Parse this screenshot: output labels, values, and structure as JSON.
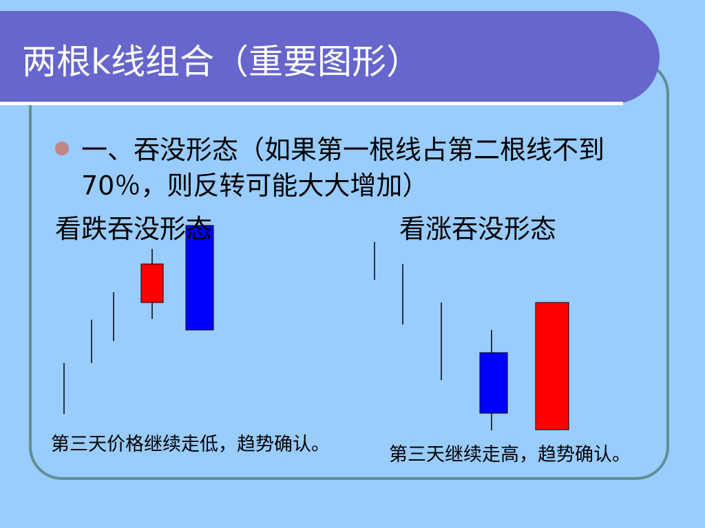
{
  "slide": {
    "title": "两根k线组合（重要图形）",
    "bullet": "一、吞没形态（如果第一根线占第二根线不到70％，则反转可能大大增加）",
    "left_label": "看跌吞没形态",
    "right_label": "看涨吞没形态",
    "left_caption": "第三天价格继续走低，趋势确认。",
    "right_caption": "第三天继续走高，趋势确认。"
  },
  "colors": {
    "background": "#99ccff",
    "title_bar": "#6666cc",
    "bullish": "#ff0000",
    "bearish": "#0000ff"
  }
}
